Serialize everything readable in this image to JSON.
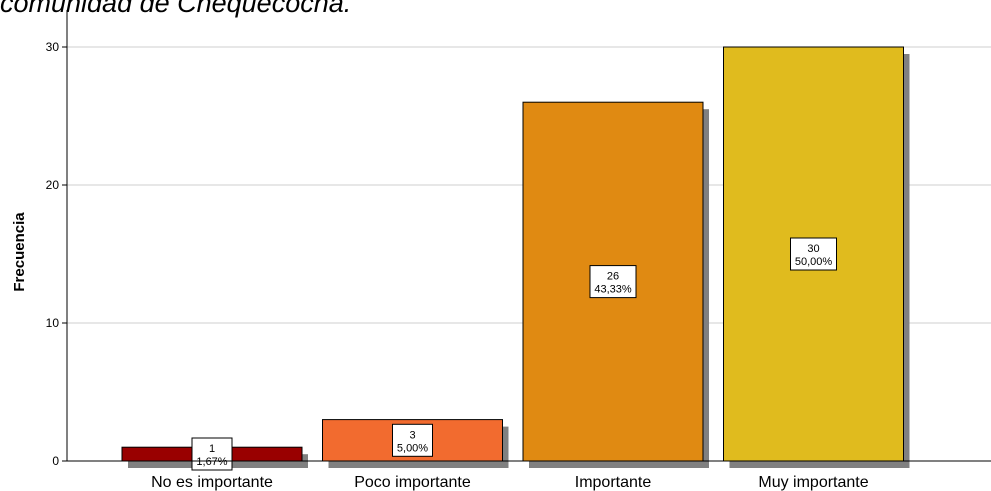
{
  "chart_data": {
    "type": "bar",
    "title": "comunidad de Chequecocha.",
    "ylabel": "Frecuencia",
    "xlabel": "",
    "categories": [
      "No es importante",
      "Poco importante",
      "Importante",
      "Muy importante"
    ],
    "values": [
      1,
      3,
      26,
      30
    ],
    "percent_labels": [
      "1,67%",
      "5,00%",
      "43,33%",
      "50,00%"
    ],
    "count_labels": [
      "1",
      "3",
      "26",
      "30"
    ],
    "ylim": [
      0,
      30
    ],
    "yticks": [
      "0",
      "10",
      "20",
      "30"
    ],
    "ytick_values": [
      0,
      10,
      20,
      30
    ],
    "grid": true,
    "colors": [
      "#990000",
      "#f26b2f",
      "#e08a12",
      "#e0bb1e"
    ],
    "shadow_color": "#808080"
  }
}
